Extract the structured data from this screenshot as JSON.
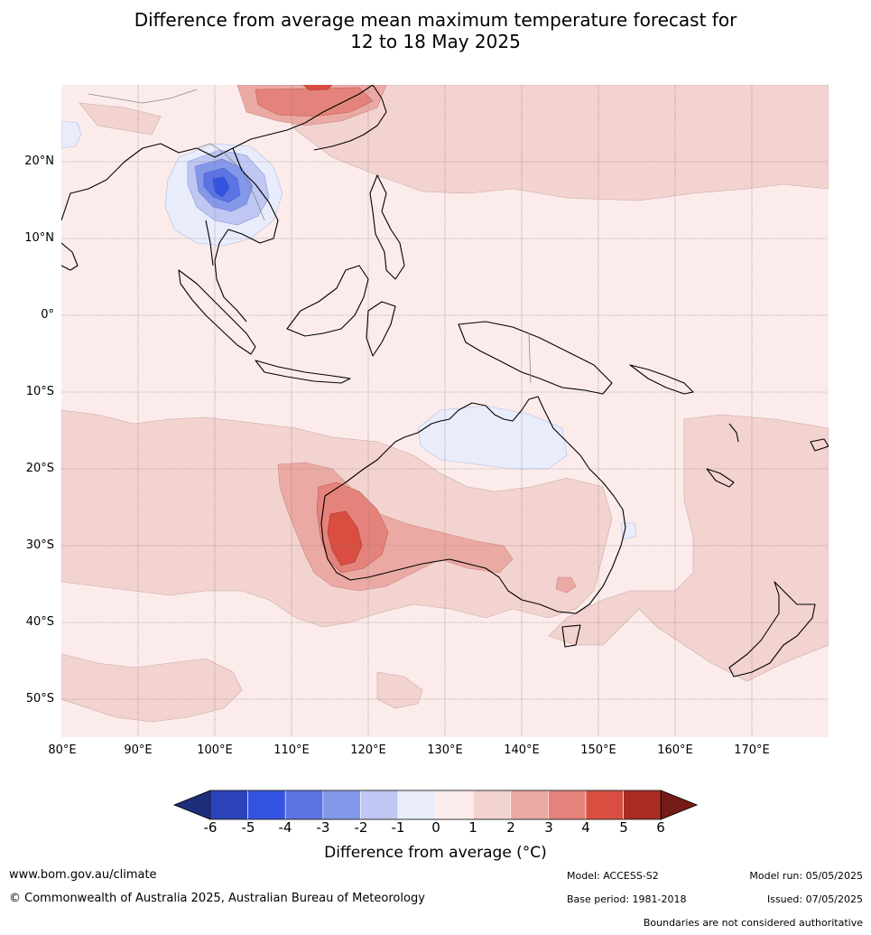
{
  "title": {
    "line1": "Difference from average mean maximum temperature forecast for",
    "line2": "12 to 18 May 2025"
  },
  "map": {
    "lat_labels": [
      "20°N",
      "10°N",
      "0°",
      "10°S",
      "20°S",
      "30°S",
      "40°S",
      "50°S"
    ],
    "lon_labels": [
      "80°E",
      "90°E",
      "100°E",
      "110°E",
      "120°E",
      "130°E",
      "140°E",
      "150°E",
      "160°E",
      "170°E"
    ]
  },
  "colorbar": {
    "ticks": [
      "-6",
      "-5",
      "-4",
      "-3",
      "-2",
      "-1",
      "0",
      "1",
      "2",
      "3",
      "4",
      "5",
      "6"
    ],
    "colors": [
      "#1f2e7a",
      "#2a43b8",
      "#3254e0",
      "#5b73e3",
      "#8498ea",
      "#bfc7f2",
      "#e8ecfb",
      "#fbeceb",
      "#f3d3d0",
      "#eba9a3",
      "#e4837b",
      "#d94e41",
      "#a82c24",
      "#751b17"
    ],
    "label": "Difference from average (°C)"
  },
  "footer": {
    "website": "www.bom.gov.au/climate",
    "copyright": "© Commonwealth of Australia 2025, Australian Bureau of Meteorology",
    "model": "Model: ACCESS-S2",
    "base_period": "Base period: 1981-2018",
    "model_run": "Model run: 05/05/2025",
    "issued": "Issued: 07/05/2025",
    "disclaimer": "Boundaries are not considered authoritative"
  }
}
